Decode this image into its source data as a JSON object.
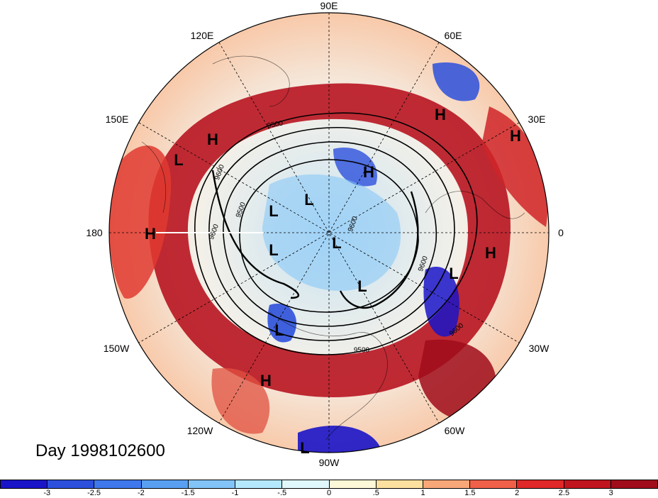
{
  "title": "Day 1998102600",
  "longitude_labels": [
    "90E",
    "60E",
    "120E",
    "150E",
    "30E",
    "180",
    "0",
    "150W",
    "30W",
    "120W",
    "60W",
    "90W"
  ],
  "pressure_systems": [
    "H",
    "H",
    "H",
    "H",
    "H",
    "H",
    "H",
    "L",
    "L",
    "L",
    "L",
    "L",
    "L",
    "L",
    "L",
    "L"
  ],
  "contour_labels": [
    "9500",
    "9600",
    "9600",
    "9500",
    "9600",
    "9600",
    "9600",
    "9500"
  ],
  "colorbar": {
    "ticks": [
      "-3",
      "-2.5",
      "-2",
      "-1.5",
      "-1",
      "-.5",
      "0",
      ".5",
      "1",
      "1.5",
      "2",
      "2.5",
      "3"
    ],
    "colors": [
      "#1a14c8",
      "#2c50dc",
      "#3f78ec",
      "#5aa0f2",
      "#82c4f8",
      "#b4e8fc",
      "#e0f8fc",
      "#fcf8d8",
      "#fce0a0",
      "#f8a878",
      "#f06048",
      "#e02828",
      "#c0141e",
      "#a00c1a"
    ]
  }
}
